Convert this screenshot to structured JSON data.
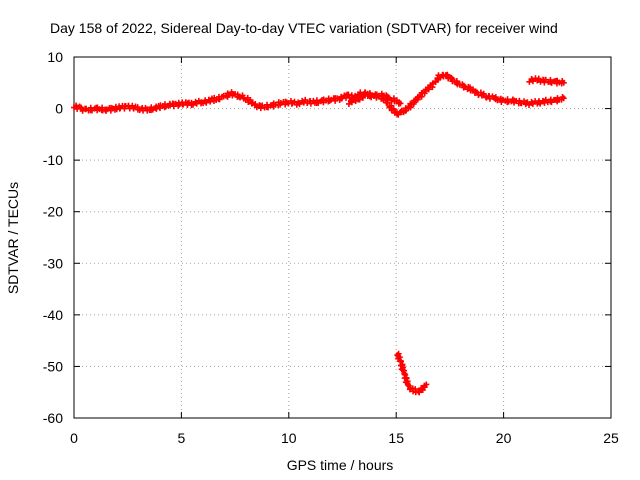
{
  "chart_data": {
    "type": "scatter",
    "title": "Day 158 of 2022, Sidereal Day-to-day VTEC variation (SDTVAR) for receiver wind",
    "xlabel": "GPS time / hours",
    "ylabel": "SDTVAR / TECUs",
    "xlim": [
      0,
      25
    ],
    "ylim": [
      -60,
      10
    ],
    "xticks": [
      0,
      5,
      10,
      15,
      20,
      25
    ],
    "xtick_labels": [
      "0",
      "5",
      "10",
      "15",
      "20",
      "25"
    ],
    "yticks": [
      10,
      0,
      -10,
      -20,
      -30,
      -40,
      -50,
      -60
    ],
    "ytick_labels": [
      "10",
      "0",
      "-10",
      "-20",
      "-30",
      "-40",
      "-50",
      "-60"
    ],
    "grid": true,
    "marker": "plus",
    "series_color": "#ff0000",
    "segments": [
      {
        "name": "main trace",
        "x": [
          0.0,
          0.3,
          0.6,
          1.0,
          1.5,
          2.0,
          2.5,
          3.0,
          3.5,
          4.0,
          4.5,
          5.0,
          5.5,
          6.0,
          6.5,
          7.0,
          7.3,
          7.7,
          8.0,
          8.4,
          8.8,
          9.2,
          9.6,
          10.0,
          10.4,
          10.8,
          11.2,
          11.6,
          12.0,
          12.4,
          12.8,
          13.0,
          13.3,
          13.6,
          14.0,
          14.4,
          14.7,
          15.0,
          15.3,
          15.6,
          16.0,
          16.4,
          16.8,
          17.0,
          17.3,
          17.6,
          18.0,
          18.4,
          18.8,
          19.2,
          19.6,
          20.0,
          20.4,
          20.8,
          21.2,
          21.6,
          22.0,
          22.4,
          22.8
        ],
        "y": [
          0.5,
          0.0,
          -0.3,
          0.0,
          -0.2,
          0.1,
          0.4,
          0.0,
          -0.2,
          0.4,
          0.7,
          0.9,
          1.0,
          1.3,
          1.7,
          2.3,
          2.9,
          2.4,
          2.0,
          0.7,
          0.3,
          0.6,
          1.0,
          1.2,
          1.0,
          1.4,
          1.2,
          1.5,
          1.7,
          2.0,
          2.6,
          2.0,
          2.8,
          2.9,
          2.5,
          2.0,
          0.5,
          -1.0,
          -0.7,
          0.3,
          2.0,
          3.6,
          5.0,
          6.2,
          6.6,
          5.6,
          4.6,
          3.8,
          3.0,
          2.4,
          2.0,
          1.5,
          1.5,
          1.2,
          1.0,
          1.2,
          1.4,
          1.6,
          2.0
        ]
      },
      {
        "name": "secondary trace",
        "x": [
          12.8,
          13.2,
          13.6,
          14.0,
          14.4,
          14.8,
          15.2
        ],
        "y": [
          1.2,
          1.8,
          2.6,
          2.4,
          2.6,
          1.8,
          1.0
        ]
      },
      {
        "name": "upper late trace",
        "x": [
          21.2,
          21.6,
          22.0,
          22.4,
          22.8
        ],
        "y": [
          5.5,
          5.6,
          5.3,
          5.2,
          5.0
        ]
      },
      {
        "name": "outlier dip",
        "x": [
          15.05,
          15.2,
          15.35,
          15.5,
          15.65,
          15.8,
          16.0,
          16.2,
          16.4
        ],
        "y": [
          -47.5,
          -49.0,
          -51.0,
          -53.0,
          -54.2,
          -54.6,
          -55.0,
          -54.5,
          -53.5
        ]
      }
    ]
  }
}
